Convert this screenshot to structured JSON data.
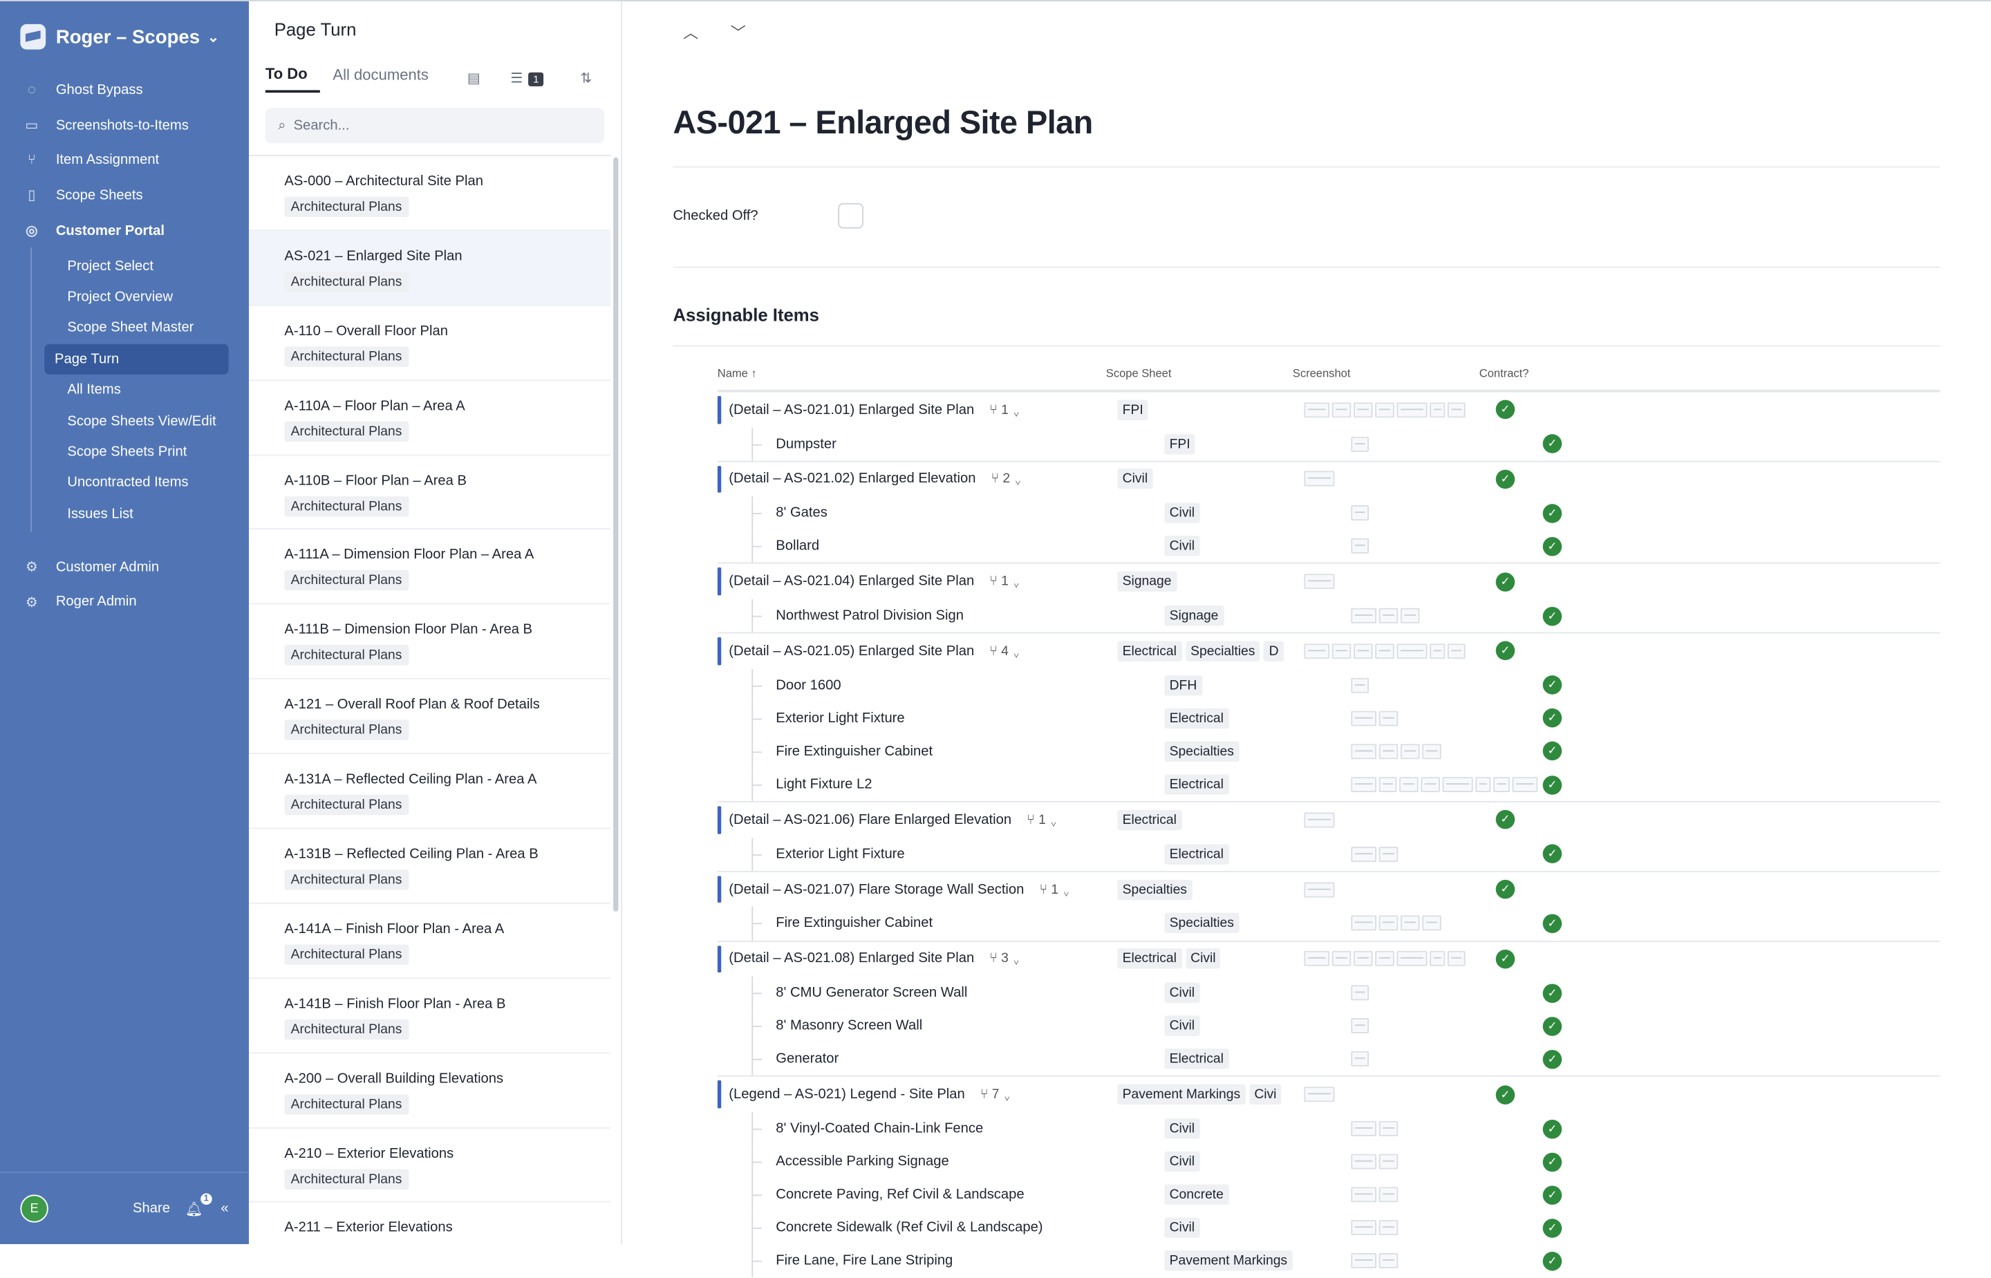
{
  "brand": {
    "title": "Roger – Scopes"
  },
  "nav": {
    "ghost": "Ghost Bypass",
    "screenshots": "Screenshots-to-Items",
    "assignment": "Item Assignment",
    "scope_sheets": "Scope Sheets",
    "customer_portal": "Customer Portal",
    "sub": [
      "Project Select",
      "Project Overview",
      "Scope Sheet Master",
      "Page Turn",
      "All Items",
      "Scope Sheets View/Edit",
      "Scope Sheets Print",
      "Uncontracted Items",
      "Issues List"
    ],
    "customer_admin": "Customer Admin",
    "roger_admin": "Roger Admin"
  },
  "footer": {
    "avatar": "E",
    "share": "Share",
    "notif_count": "1"
  },
  "panel": {
    "title": "Page Turn",
    "tab_todo": "To Do",
    "tab_all": "All documents",
    "filter_count": "1",
    "search_placeholder": "Search...",
    "docs": [
      {
        "title": "AS-000 – Architectural Site Plan",
        "tag": "Architectural Plans"
      },
      {
        "title": "AS-021 – Enlarged Site Plan",
        "tag": "Architectural Plans"
      },
      {
        "title": "A-110 – Overall Floor Plan",
        "tag": "Architectural Plans"
      },
      {
        "title": "A-110A – Floor Plan – Area A",
        "tag": "Architectural Plans"
      },
      {
        "title": "A-110B – Floor Plan – Area B",
        "tag": "Architectural Plans"
      },
      {
        "title": "A-111A – Dimension Floor Plan – Area A",
        "tag": "Architectural Plans"
      },
      {
        "title": "A-111B – Dimension Floor Plan - Area B",
        "tag": "Architectural Plans"
      },
      {
        "title": "A-121 – Overall Roof Plan & Roof Details",
        "tag": "Architectural Plans"
      },
      {
        "title": "A-131A – Reflected Ceiling Plan - Area A",
        "tag": "Architectural Plans"
      },
      {
        "title": "A-131B – Reflected Ceiling Plan - Area B",
        "tag": "Architectural Plans"
      },
      {
        "title": "A-141A – Finish Floor Plan - Area A",
        "tag": "Architectural Plans"
      },
      {
        "title": "A-141B – Finish Floor Plan - Area B",
        "tag": "Architectural Plans"
      },
      {
        "title": "A-200 – Overall Building Elevations",
        "tag": "Architectural Plans"
      },
      {
        "title": "A-210 – Exterior Elevations",
        "tag": "Architectural Plans"
      },
      {
        "title": "A-211 – Exterior Elevations",
        "tag": ""
      }
    ]
  },
  "main": {
    "title": "AS-021 – Enlarged Site Plan",
    "checked_label": "Checked Off?",
    "section": "Assignable Items",
    "columns": {
      "name": "Name",
      "sort": "↑",
      "scope": "Scope Sheet",
      "shot": "Screenshot",
      "contract": "Contract?"
    },
    "rows": [
      {
        "kind": "group",
        "name": "(Detail – AS-021.01) Enlarged Site Plan",
        "count": "1",
        "chips": [
          "FPI"
        ],
        "thumbs": 7
      },
      {
        "kind": "child",
        "name": "Dumpster",
        "chips": [
          "FPI"
        ],
        "thumbs": 1
      },
      {
        "kind": "group",
        "name": "(Detail – AS-021.02) Enlarged Elevation",
        "count": "2",
        "chips": [
          "Civil"
        ],
        "thumbs": 1
      },
      {
        "kind": "child",
        "name": "8' Gates",
        "chips": [
          "Civil"
        ],
        "thumbs": 1
      },
      {
        "kind": "child",
        "name": "Bollard",
        "chips": [
          "Civil"
        ],
        "thumbs": 1
      },
      {
        "kind": "group",
        "name": "(Detail – AS-021.04) Enlarged Site Plan",
        "count": "1",
        "chips": [
          "Signage"
        ],
        "thumbs": 1
      },
      {
        "kind": "child",
        "name": "Northwest Patrol Division Sign",
        "chips": [
          "Signage"
        ],
        "thumbs": 3
      },
      {
        "kind": "group",
        "name": "(Detail – AS-021.05) Enlarged Site Plan",
        "count": "4",
        "chips": [
          "Electrical",
          "Specialties",
          "D"
        ],
        "thumbs": 7
      },
      {
        "kind": "child",
        "name": "Door 1600",
        "chips": [
          "DFH"
        ],
        "thumbs": 1
      },
      {
        "kind": "child",
        "name": "Exterior Light Fixture",
        "chips": [
          "Electrical"
        ],
        "thumbs": 2
      },
      {
        "kind": "child",
        "name": "Fire Extinguisher Cabinet",
        "chips": [
          "Specialties"
        ],
        "thumbs": 4
      },
      {
        "kind": "child",
        "name": "Light Fixture L2",
        "chips": [
          "Electrical"
        ],
        "thumbs": 8
      },
      {
        "kind": "group",
        "name": "(Detail – AS-021.06) Flare Enlarged Elevation",
        "count": "1",
        "chips": [
          "Electrical"
        ],
        "thumbs": 1
      },
      {
        "kind": "child",
        "name": "Exterior Light Fixture",
        "chips": [
          "Electrical"
        ],
        "thumbs": 2
      },
      {
        "kind": "group",
        "name": "(Detail – AS-021.07) Flare Storage Wall Section",
        "count": "1",
        "chips": [
          "Specialties"
        ],
        "thumbs": 1
      },
      {
        "kind": "child",
        "name": "Fire Extinguisher Cabinet",
        "chips": [
          "Specialties"
        ],
        "thumbs": 4
      },
      {
        "kind": "group",
        "name": "(Detail – AS-021.08) Enlarged Site Plan",
        "count": "3",
        "chips": [
          "Electrical",
          "Civil"
        ],
        "thumbs": 7
      },
      {
        "kind": "child",
        "name": "8' CMU Generator Screen Wall",
        "chips": [
          "Civil"
        ],
        "thumbs": 1
      },
      {
        "kind": "child",
        "name": "8' Masonry Screen Wall",
        "chips": [
          "Civil"
        ],
        "thumbs": 1
      },
      {
        "kind": "child",
        "name": "Generator",
        "chips": [
          "Electrical"
        ],
        "thumbs": 1
      },
      {
        "kind": "group",
        "name": "(Legend – AS-021) Legend - Site Plan",
        "count": "7",
        "chips": [
          "Pavement Markings",
          "Civi"
        ],
        "thumbs": 1
      },
      {
        "kind": "child",
        "name": "8' Vinyl-Coated Chain-Link Fence",
        "chips": [
          "Civil"
        ],
        "thumbs": 2
      },
      {
        "kind": "child",
        "name": "Accessible Parking Signage",
        "chips": [
          "Civil"
        ],
        "thumbs": 2
      },
      {
        "kind": "child",
        "name": "Concrete Paving, Ref Civil & Landscape",
        "chips": [
          "Concrete"
        ],
        "thumbs": 2
      },
      {
        "kind": "child",
        "name": "Concrete Sidewalk (Ref Civil & Landscape)",
        "chips": [
          "Civil"
        ],
        "thumbs": 2
      },
      {
        "kind": "child",
        "name": "Fire Lane, Fire Lane Striping",
        "chips": [
          "Pavement Markings"
        ],
        "thumbs": 2
      }
    ]
  },
  "colors": {
    "sidebar": "#5175b4",
    "accent": "#3d63c4",
    "check": "#2f8a3e"
  }
}
